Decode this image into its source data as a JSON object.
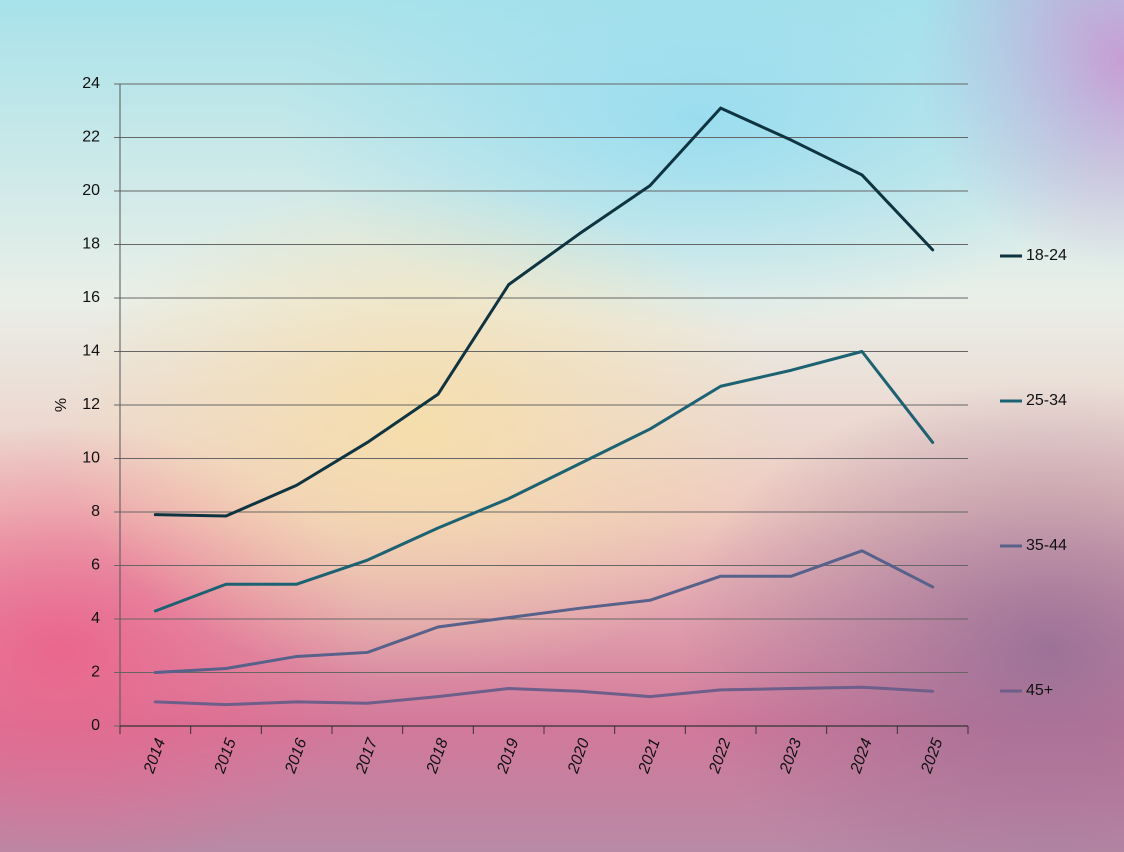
{
  "chart_data": {
    "type": "line",
    "y_label": "%",
    "categories": [
      "2014",
      "2015",
      "2016",
      "2017",
      "2018",
      "2019",
      "2020",
      "2021",
      "2022",
      "2023",
      "2024",
      "2025"
    ],
    "series": [
      {
        "name": "18-24",
        "color": "#0f3441",
        "values": [
          7.9,
          7.85,
          9.0,
          10.6,
          12.4,
          16.5,
          18.4,
          20.2,
          23.1,
          21.9,
          20.6,
          17.8
        ]
      },
      {
        "name": "25-34",
        "color": "#1d6272",
        "values": [
          4.3,
          5.3,
          5.3,
          6.2,
          7.4,
          8.5,
          9.8,
          11.1,
          12.7,
          13.3,
          14.0,
          10.6
        ]
      },
      {
        "name": "35-44",
        "color": "#58618a",
        "values": [
          2.0,
          2.15,
          2.6,
          2.75,
          3.7,
          4.05,
          4.4,
          4.7,
          5.6,
          5.6,
          6.55,
          5.2
        ]
      },
      {
        "name": "45+",
        "color": "#6e5e8a",
        "values": [
          0.9,
          0.8,
          0.9,
          0.85,
          1.1,
          1.4,
          1.3,
          1.1,
          1.35,
          1.4,
          1.45,
          1.3
        ]
      }
    ],
    "ylim": [
      0,
      24
    ],
    "yticks": [
      0,
      2,
      4,
      6,
      8,
      10,
      12,
      14,
      16,
      18,
      20,
      22,
      24
    ],
    "grid": true
  }
}
